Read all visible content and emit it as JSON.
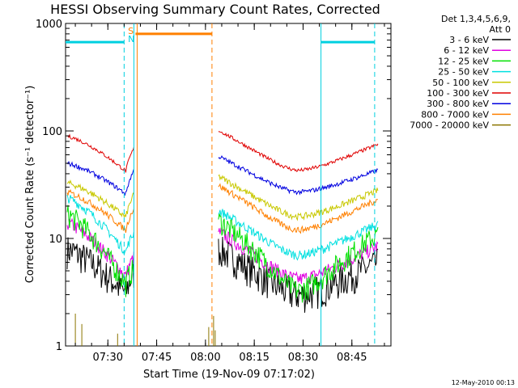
{
  "chart_data": {
    "type": "line",
    "title": "HESSI Observing Summary Count Rates, Corrected",
    "xlabel": "Start Time (19-Nov-09 07:17:02)",
    "ylabel": "Corrected Count Rate (s⁻¹ detector⁻¹)",
    "yscale": "log",
    "ylim": [
      1,
      1000
    ],
    "xlim_minutes": [
      0,
      100
    ],
    "x_ticks": [
      {
        "m": 13,
        "label": "07:30"
      },
      {
        "m": 28,
        "label": "07:45"
      },
      {
        "m": 43,
        "label": "08:00"
      },
      {
        "m": 58,
        "label": "08:15"
      },
      {
        "m": 73,
        "label": "08:30"
      },
      {
        "m": 88,
        "label": "08:45"
      }
    ],
    "y_ticks": [
      {
        "v": 1,
        "label": "1"
      },
      {
        "v": 10,
        "label": "10"
      },
      {
        "v": 100,
        "label": "100"
      },
      {
        "v": 1000,
        "label": "1000"
      }
    ],
    "legend": {
      "header1": "Det 1,3,4,5,6,9,",
      "header2": "Att 0",
      "placement": "right"
    },
    "gap_minutes": [
      21,
      47
    ],
    "series": [
      {
        "name": "3 - 6 keV",
        "color": "#000000",
        "y_start": 8,
        "y_mid": 3,
        "y_end": 6,
        "noise": 0.35
      },
      {
        "name": "6 - 12 keV",
        "color": "#e000e0",
        "y_start": 14,
        "y_mid": 4.2,
        "y_end": 8.5,
        "noise": 0.15
      },
      {
        "name": "12 - 25 keV",
        "color": "#00e000",
        "y_start": 17,
        "y_mid": 3.3,
        "y_end": 11,
        "noise": 0.25
      },
      {
        "name": "25 - 50 keV",
        "color": "#00e0e0",
        "y_start": 24,
        "y_mid": 7,
        "y_end": 13.5,
        "noise": 0.1
      },
      {
        "name": "50 - 100 keV",
        "color": "#c8c800",
        "y_start": 33,
        "y_mid": 16,
        "y_end": 28,
        "noise": 0.07
      },
      {
        "name": "100 - 300 keV",
        "color": "#e00000",
        "y_start": 90,
        "y_mid": 43,
        "y_end": 75,
        "noise": 0.04
      },
      {
        "name": "300 - 800 keV",
        "color": "#0000e0",
        "y_start": 50,
        "y_mid": 27,
        "y_end": 43,
        "noise": 0.05
      },
      {
        "name": "800 - 7000 keV",
        "color": "#ff8000",
        "y_start": 27,
        "y_mid": 12,
        "y_end": 23,
        "noise": 0.07
      },
      {
        "name": "7000 - 20000 keV",
        "color": "#8b7500",
        "y_start": 1,
        "y_mid": 1,
        "y_end": 1,
        "noise": 0
      }
    ],
    "annotations": {
      "saa_label": "S",
      "night_label": "N",
      "saa_bar_minutes": [
        21.5,
        45
      ],
      "saa_bar_value": 800,
      "night_bar_left_minutes": [
        0,
        18
      ],
      "night_bar_right_minutes": [
        78.5,
        95
      ],
      "night_bar_value": 670,
      "cyan_dashed_minutes": [
        18,
        95
      ],
      "cyan_solid_minutes": [
        21,
        78.5
      ],
      "orange_solid_minutes": [
        22
      ],
      "orange_dashed_minutes": [
        45
      ]
    }
  },
  "footer_date": "12-May-2010 00:13"
}
